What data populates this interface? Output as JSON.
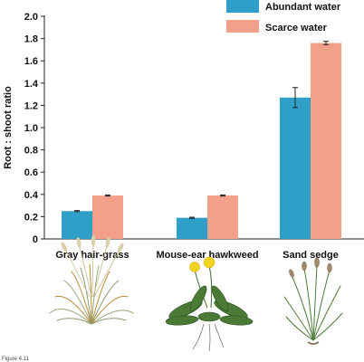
{
  "caption": "Figure 4.11",
  "colors": {
    "abundant": "#2f9fc8",
    "scarce": "#f2a08a",
    "plant_stem": "#3d6a2c",
    "grass_brown": "#b88a35",
    "flower_yellow": "#f3d21b"
  },
  "plant_illustrations": [
    "gray-hair-grass-illustration",
    "mouse-ear-hawkweed-illustration",
    "sand-sedge-illustration"
  ],
  "chart_data": {
    "type": "bar",
    "title": "",
    "xlabel": "",
    "ylabel": "Root : shoot ratio",
    "ylim": [
      0,
      2.0
    ],
    "yticks": [
      "0",
      "0.2",
      "0.4",
      "0.6",
      "0.8",
      "1.0",
      "1.2",
      "1.4",
      "1.6",
      "1.8",
      "2.0"
    ],
    "categories": [
      "Gray hair-grass",
      "Mouse-ear hawkweed",
      "Sand sedge"
    ],
    "series": [
      {
        "name": "Abundant water",
        "values": [
          0.25,
          0.19,
          1.27
        ],
        "errors": [
          0.005,
          0.005,
          0.09
        ]
      },
      {
        "name": "Scarce water",
        "values": [
          0.39,
          0.39,
          1.76
        ],
        "errors": [
          0.005,
          0.005,
          0.015
        ]
      }
    ],
    "legend": {
      "position": "top-right"
    },
    "grid": false
  }
}
